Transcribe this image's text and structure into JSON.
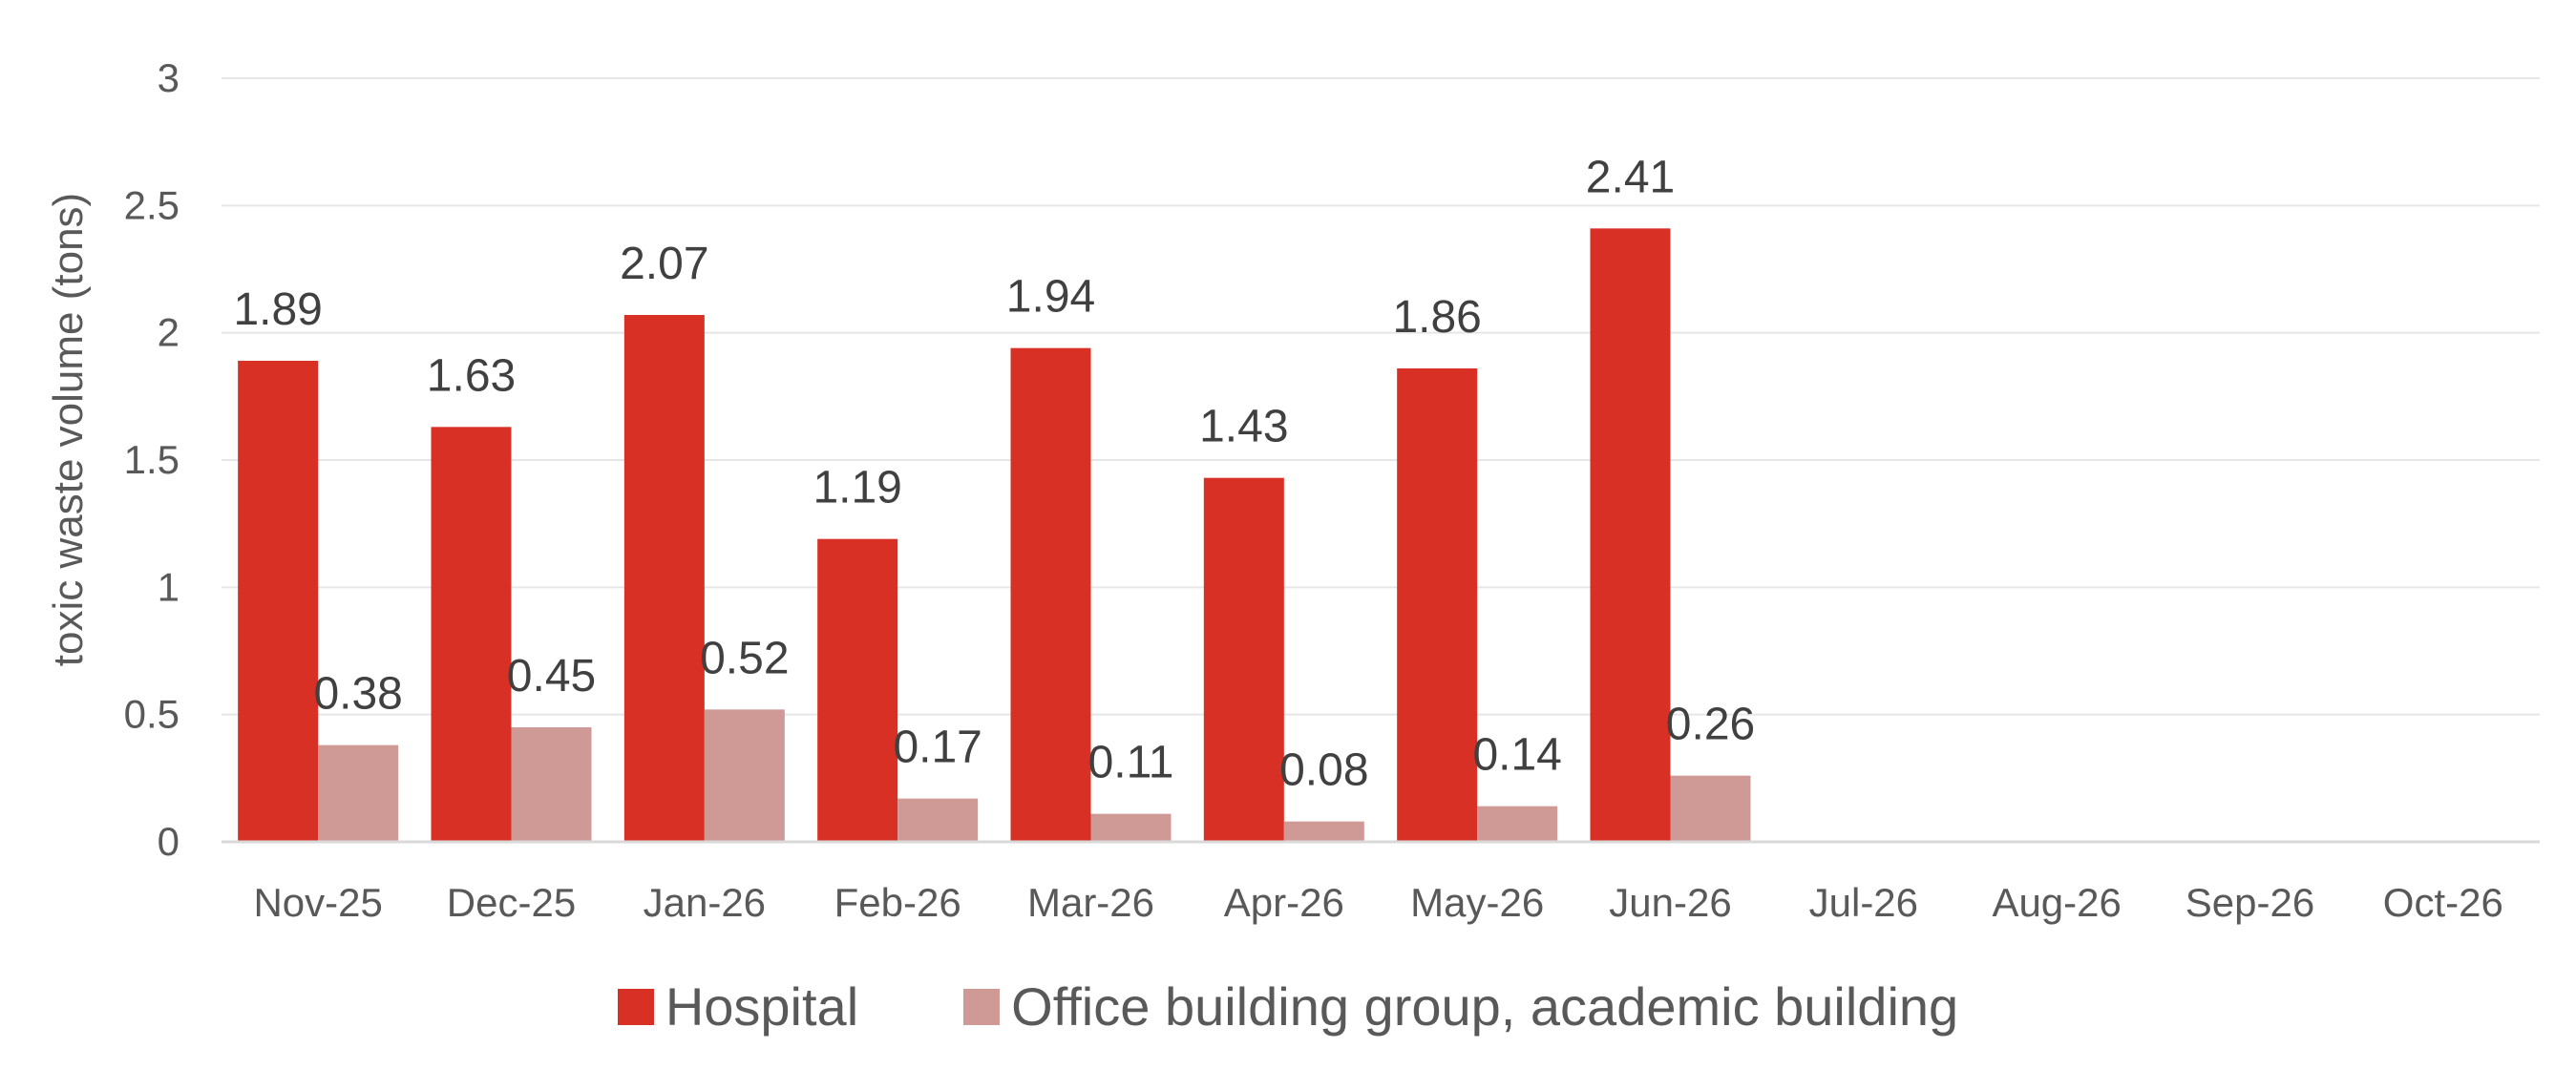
{
  "chart_data": {
    "type": "bar",
    "categories": [
      "Nov-25",
      "Dec-25",
      "Jan-26",
      "Feb-26",
      "Mar-26",
      "Apr-26",
      "May-26",
      "Jun-26",
      "Jul-26",
      "Aug-26",
      "Sep-26",
      "Oct-26"
    ],
    "series": [
      {
        "name": "Hospital",
        "color": "#D93025",
        "values": [
          1.89,
          1.63,
          2.07,
          1.19,
          1.94,
          1.43,
          1.86,
          2.41,
          null,
          null,
          null,
          null
        ]
      },
      {
        "name": "Office building group, academic building",
        "color": "#CF9A96",
        "values": [
          0.38,
          0.45,
          0.52,
          0.17,
          0.11,
          0.08,
          0.14,
          0.26,
          null,
          null,
          null,
          null
        ]
      }
    ],
    "ylabel": "toxic waste volume (tons)",
    "xlabel": "",
    "ylim": [
      0,
      3
    ],
    "yticks": [
      "0",
      "0.5",
      "1",
      "1.5",
      "2",
      "2.5",
      "3"
    ],
    "grid": true,
    "legend_position": "bottom",
    "data_labels": true
  }
}
